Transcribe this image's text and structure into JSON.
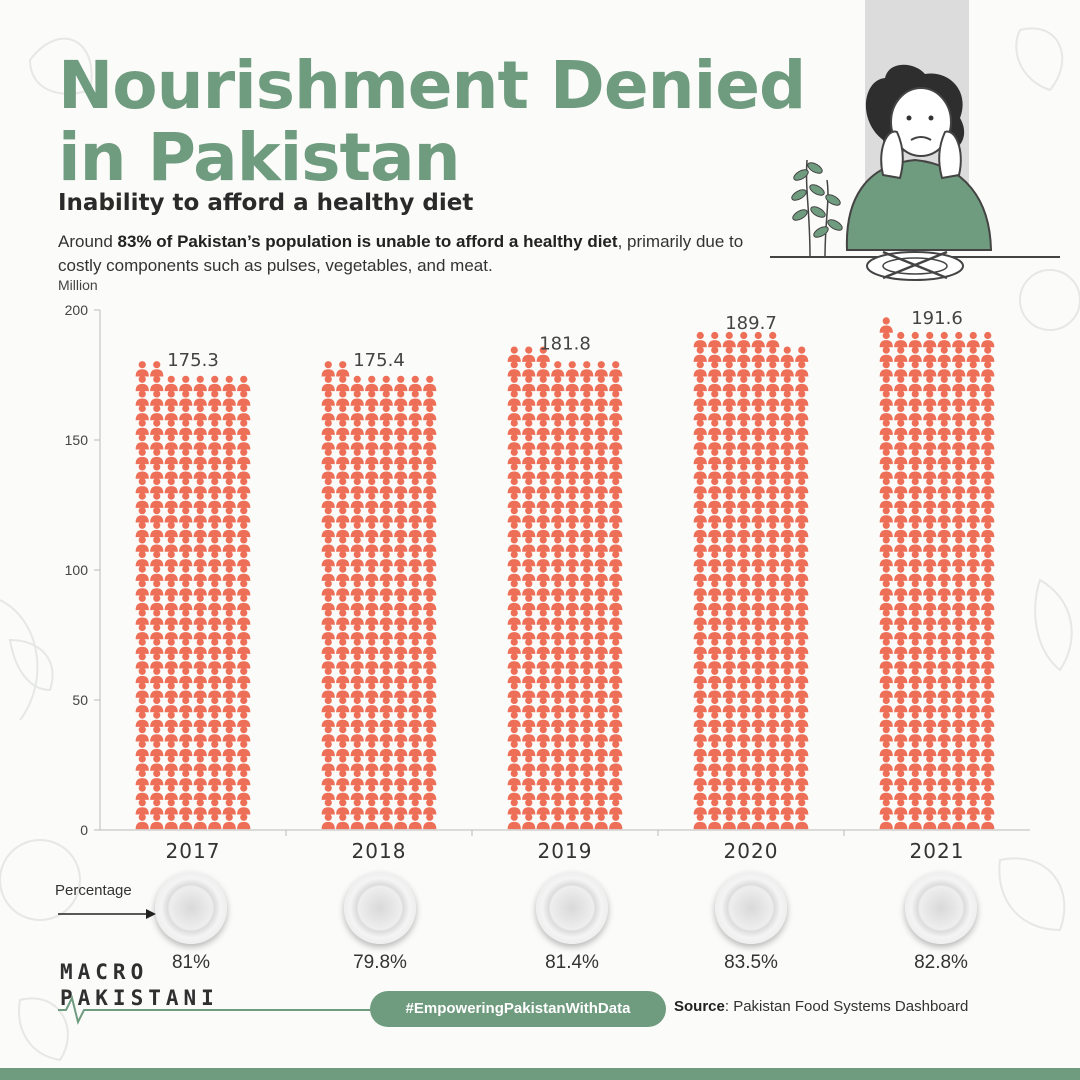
{
  "header": {
    "title_line1": "Nourishment Denied",
    "title_line2": "in Pakistan",
    "subtitle": "Inability to afford a healthy diet",
    "desc_prefix": "Around ",
    "desc_bold": "83% of Pakistan’s population is unable to afford a healthy diet",
    "desc_suffix": ", primarily due to costly components such as pulses, vegetables, and meat.",
    "unit_label": "Million"
  },
  "chart_data": {
    "type": "bar",
    "style": "pictogram",
    "categories": [
      "2017",
      "2018",
      "2019",
      "2020",
      "2021"
    ],
    "values": [
      175.3,
      175.4,
      181.8,
      189.7,
      191.6
    ],
    "value_labels": [
      "175.3",
      "175.4",
      "181.8",
      "189.7",
      "191.6"
    ],
    "ylabel": "Million",
    "ylim": [
      0,
      200
    ],
    "yticks": [
      0,
      50,
      100,
      150,
      200
    ],
    "grid": false,
    "icon": "person-icon",
    "icon_color": "#ee6f57",
    "percentages": [
      "81%",
      "79.8%",
      "81.4%",
      "83.5%",
      "82.8%"
    ]
  },
  "percentage_row": {
    "label": "Percentage",
    "plate_icon": "plate-icon"
  },
  "footer": {
    "logo_line1": "MACRO",
    "logo_line2": "PAKISTANI",
    "hashtag": "#EmpoweringPakistanWithData",
    "source_label": "Source",
    "source_text": ": Pakistan Food Systems Dashboard"
  },
  "colors": {
    "accent": "#6f9b7f",
    "icon": "#ee6f57",
    "text": "#333333"
  }
}
